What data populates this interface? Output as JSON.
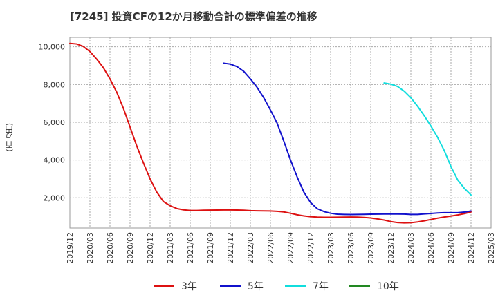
{
  "title": "[7245]  投資CFの12か月移動合計の標準偏差の推移",
  "y_axis_unit": "(百万円)",
  "chart_data": {
    "type": "line",
    "title": "[7245]  投資CFの12か月移動合計の標準偏差の推移",
    "ylabel": "(百万円)",
    "ylim": [
      400,
      10500
    ],
    "y_ticks": [
      2000,
      4000,
      6000,
      8000,
      10000
    ],
    "y_tick_labels": [
      "2,000",
      "4,000",
      "6,000",
      "8,000",
      "10,000"
    ],
    "x_ticks": [
      "2019/12",
      "2020/03",
      "2020/06",
      "2020/09",
      "2020/12",
      "2021/03",
      "2021/06",
      "2021/09",
      "2021/12",
      "2022/03",
      "2022/06",
      "2022/09",
      "2022/12",
      "2023/03",
      "2023/06",
      "2023/09",
      "2023/12",
      "2024/03",
      "2024/06",
      "2024/09",
      "2024/12",
      "2025/03"
    ],
    "grid": true,
    "legend_position": "bottom",
    "series": [
      {
        "name": "3年",
        "color": "#dd1111",
        "points": [
          [
            "2019/12",
            10180
          ],
          [
            "2020/01",
            10150
          ],
          [
            "2020/02",
            10020
          ],
          [
            "2020/03",
            9750
          ],
          [
            "2020/04",
            9350
          ],
          [
            "2020/05",
            8900
          ],
          [
            "2020/06",
            8300
          ],
          [
            "2020/07",
            7600
          ],
          [
            "2020/08",
            6750
          ],
          [
            "2020/09",
            5750
          ],
          [
            "2020/10",
            4750
          ],
          [
            "2020/11",
            3850
          ],
          [
            "2020/12",
            3000
          ],
          [
            "2021/01",
            2300
          ],
          [
            "2021/02",
            1800
          ],
          [
            "2021/03",
            1580
          ],
          [
            "2021/04",
            1430
          ],
          [
            "2021/05",
            1360
          ],
          [
            "2021/06",
            1330
          ],
          [
            "2021/07",
            1330
          ],
          [
            "2021/08",
            1340
          ],
          [
            "2021/09",
            1345
          ],
          [
            "2021/10",
            1350
          ],
          [
            "2021/11",
            1355
          ],
          [
            "2021/12",
            1355
          ],
          [
            "2022/01",
            1350
          ],
          [
            "2022/02",
            1340
          ],
          [
            "2022/03",
            1320
          ],
          [
            "2022/04",
            1310
          ],
          [
            "2022/05",
            1305
          ],
          [
            "2022/06",
            1300
          ],
          [
            "2022/07",
            1285
          ],
          [
            "2022/08",
            1250
          ],
          [
            "2022/09",
            1180
          ],
          [
            "2022/10",
            1100
          ],
          [
            "2022/11",
            1040
          ],
          [
            "2022/12",
            1000
          ],
          [
            "2023/01",
            975
          ],
          [
            "2023/02",
            965
          ],
          [
            "2023/03",
            965
          ],
          [
            "2023/04",
            970
          ],
          [
            "2023/05",
            975
          ],
          [
            "2023/06",
            980
          ],
          [
            "2023/07",
            975
          ],
          [
            "2023/08",
            960
          ],
          [
            "2023/09",
            930
          ],
          [
            "2023/10",
            880
          ],
          [
            "2023/11",
            820
          ],
          [
            "2023/12",
            740
          ],
          [
            "2024/01",
            690
          ],
          [
            "2024/02",
            670
          ],
          [
            "2024/03",
            680
          ],
          [
            "2024/04",
            720
          ],
          [
            "2024/05",
            780
          ],
          [
            "2024/06",
            850
          ],
          [
            "2024/07",
            920
          ],
          [
            "2024/08",
            980
          ],
          [
            "2024/09",
            1030
          ],
          [
            "2024/10",
            1090
          ],
          [
            "2024/11",
            1160
          ],
          [
            "2024/12",
            1250
          ]
        ]
      },
      {
        "name": "5年",
        "color": "#1111cc",
        "points": [
          [
            "2021/11",
            9130
          ],
          [
            "2021/12",
            9080
          ],
          [
            "2022/01",
            8950
          ],
          [
            "2022/02",
            8700
          ],
          [
            "2022/03",
            8300
          ],
          [
            "2022/04",
            7850
          ],
          [
            "2022/05",
            7300
          ],
          [
            "2022/06",
            6650
          ],
          [
            "2022/07",
            5950
          ],
          [
            "2022/08",
            5000
          ],
          [
            "2022/09",
            4000
          ],
          [
            "2022/10",
            3100
          ],
          [
            "2022/11",
            2300
          ],
          [
            "2022/12",
            1750
          ],
          [
            "2023/01",
            1420
          ],
          [
            "2023/02",
            1270
          ],
          [
            "2023/03",
            1180
          ],
          [
            "2023/04",
            1130
          ],
          [
            "2023/05",
            1120
          ],
          [
            "2023/06",
            1115
          ],
          [
            "2023/07",
            1120
          ],
          [
            "2023/08",
            1125
          ],
          [
            "2023/09",
            1130
          ],
          [
            "2023/10",
            1135
          ],
          [
            "2023/11",
            1140
          ],
          [
            "2023/12",
            1140
          ],
          [
            "2024/01",
            1140
          ],
          [
            "2024/02",
            1135
          ],
          [
            "2024/03",
            1120
          ],
          [
            "2024/04",
            1120
          ],
          [
            "2024/05",
            1145
          ],
          [
            "2024/06",
            1170
          ],
          [
            "2024/07",
            1195
          ],
          [
            "2024/08",
            1210
          ],
          [
            "2024/09",
            1210
          ],
          [
            "2024/10",
            1210
          ],
          [
            "2024/11",
            1240
          ],
          [
            "2024/12",
            1300
          ]
        ]
      },
      {
        "name": "7年",
        "color": "#11dddd",
        "points": [
          [
            "2023/11",
            8080
          ],
          [
            "2023/12",
            8020
          ],
          [
            "2024/01",
            7900
          ],
          [
            "2024/02",
            7650
          ],
          [
            "2024/03",
            7300
          ],
          [
            "2024/04",
            6850
          ],
          [
            "2024/05",
            6350
          ],
          [
            "2024/06",
            5800
          ],
          [
            "2024/07",
            5200
          ],
          [
            "2024/08",
            4500
          ],
          [
            "2024/09",
            3650
          ],
          [
            "2024/10",
            2950
          ],
          [
            "2024/11",
            2500
          ],
          [
            "2024/12",
            2150
          ]
        ]
      },
      {
        "name": "10年",
        "color": "#228822",
        "points": []
      }
    ]
  }
}
